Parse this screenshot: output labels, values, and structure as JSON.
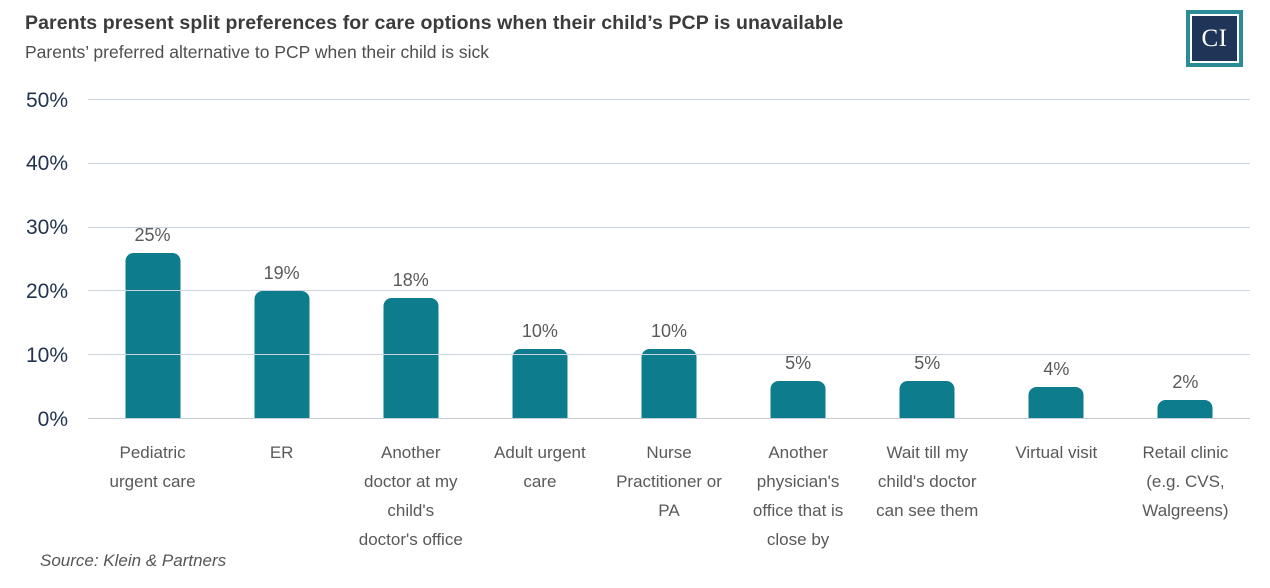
{
  "header": {
    "title": "Parents present split preferences for care options when their child’s PCP is unavailable",
    "subtitle": "Parents’ preferred alternative to PCP when their child is sick",
    "logo_text": "CI"
  },
  "chart_data": {
    "type": "bar",
    "title": "Parents present split preferences for care options when their child’s PCP is unavailable",
    "subtitle": "Parents’ preferred alternative to PCP when their child is sick",
    "categories": [
      "Pediatric urgent care",
      "ER",
      "Another doctor at my child's doctor's office",
      "Adult urgent care",
      "Nurse Practitioner or PA",
      "Another physician's office that is close by",
      "Wait till my child's doctor can see them",
      "Virtual visit",
      "Retail clinic (e.g. CVS, Walgreens)"
    ],
    "categories_lines": [
      [
        "Pediatric",
        "urgent care"
      ],
      [
        "ER"
      ],
      [
        "Another",
        "doctor at my",
        "child's",
        "doctor's office"
      ],
      [
        "Adult urgent",
        "care"
      ],
      [
        "Nurse",
        "Practitioner or",
        "PA"
      ],
      [
        "Another",
        "physician's",
        "office that is",
        "close by"
      ],
      [
        "Wait till my",
        "child's doctor",
        "can see them"
      ],
      [
        "Virtual visit"
      ],
      [
        "Retail clinic",
        "(e.g. CVS,",
        "Walgreens)"
      ]
    ],
    "values": [
      25,
      19,
      18,
      10,
      10,
      5,
      5,
      4,
      2
    ],
    "value_labels": [
      "25%",
      "19%",
      "18%",
      "10%",
      "10%",
      "5%",
      "5%",
      "4%",
      "2%"
    ],
    "xlabel": "",
    "ylabel": "",
    "ylim": [
      0,
      50
    ],
    "yticks": [
      "0%",
      "10%",
      "20%",
      "30%",
      "40%",
      "50%"
    ],
    "ytick_values": [
      0,
      10,
      20,
      30,
      40,
      50
    ],
    "grid": "horizontal",
    "legend": "none",
    "bar_color": "#0d7c8c"
  },
  "footer": {
    "source": "Source: Klein & Partners"
  },
  "colors": {
    "bar": "#0d7c8c",
    "logo_teal": "#2b8c98",
    "logo_navy": "#1f3557",
    "axis_label_navy": "#22324f",
    "gridline": "#ccd4e0",
    "label_gray": "#595959",
    "title_gray": "#3b3b3b"
  }
}
